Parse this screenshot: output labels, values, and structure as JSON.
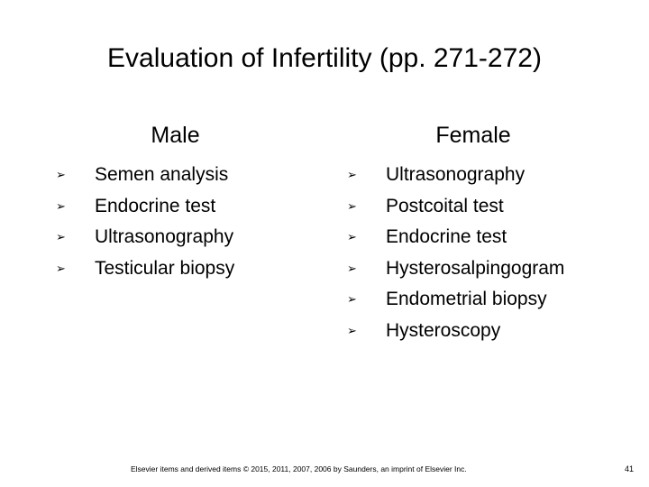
{
  "title": "Evaluation of Infertility (pp. 271-272)",
  "columns": [
    {
      "heading": "Male",
      "items": [
        "Semen analysis",
        "Endocrine test",
        "Ultrasonography",
        "Testicular biopsy"
      ]
    },
    {
      "heading": "Female",
      "items": [
        "Ultrasonography",
        "Postcoital test",
        "Endocrine test",
        "Hysterosalpingogram",
        "Endometrial biopsy",
        "Hysteroscopy"
      ]
    }
  ],
  "footer": "Elsevier items and derived items © 2015, 2011, 2007, 2006 by Saunders, an imprint of Elsevier Inc.",
  "page_number": "41"
}
